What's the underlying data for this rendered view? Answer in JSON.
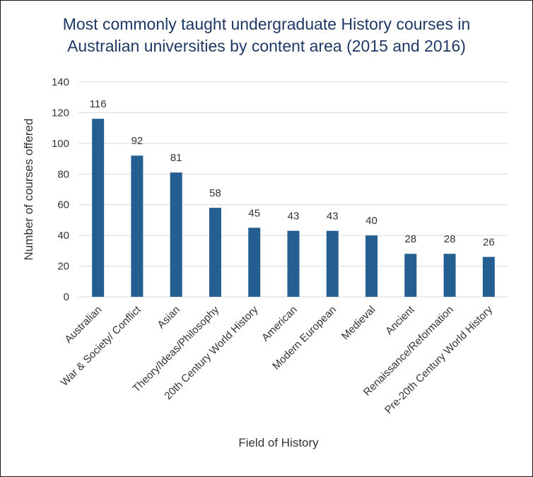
{
  "colors": {
    "bar": "#255e91",
    "title": "#1f3864",
    "text": "#333333",
    "grid": "#d9d9d9"
  },
  "chart_data": {
    "type": "bar",
    "title_lines": [
      "Most commonly taught undergraduate History courses in",
      "Australian universities by content area (2015 and 2016)"
    ],
    "xlabel": "Field of History",
    "ylabel": "Number of courses offered",
    "ylim": [
      0,
      140
    ],
    "yticks": [
      "0",
      "20",
      "40",
      "60",
      "80",
      "100",
      "120",
      "140"
    ],
    "grid": true,
    "legend": "none",
    "categories": [
      "Australian",
      "War & Society/ Conflict",
      "Asian",
      "Theory/Ideas/Philosophy",
      "20th Century World History",
      "American",
      "Modern European",
      "Medieval",
      "Ancient",
      "Renaissance/Reformation",
      "Pre-20th Century World History"
    ],
    "values": [
      116,
      92,
      81,
      58,
      45,
      43,
      43,
      40,
      28,
      28,
      26
    ],
    "data_labels": [
      "116",
      "92",
      "81",
      "58",
      "45",
      "43",
      "43",
      "40",
      "28",
      "28",
      "26"
    ]
  }
}
